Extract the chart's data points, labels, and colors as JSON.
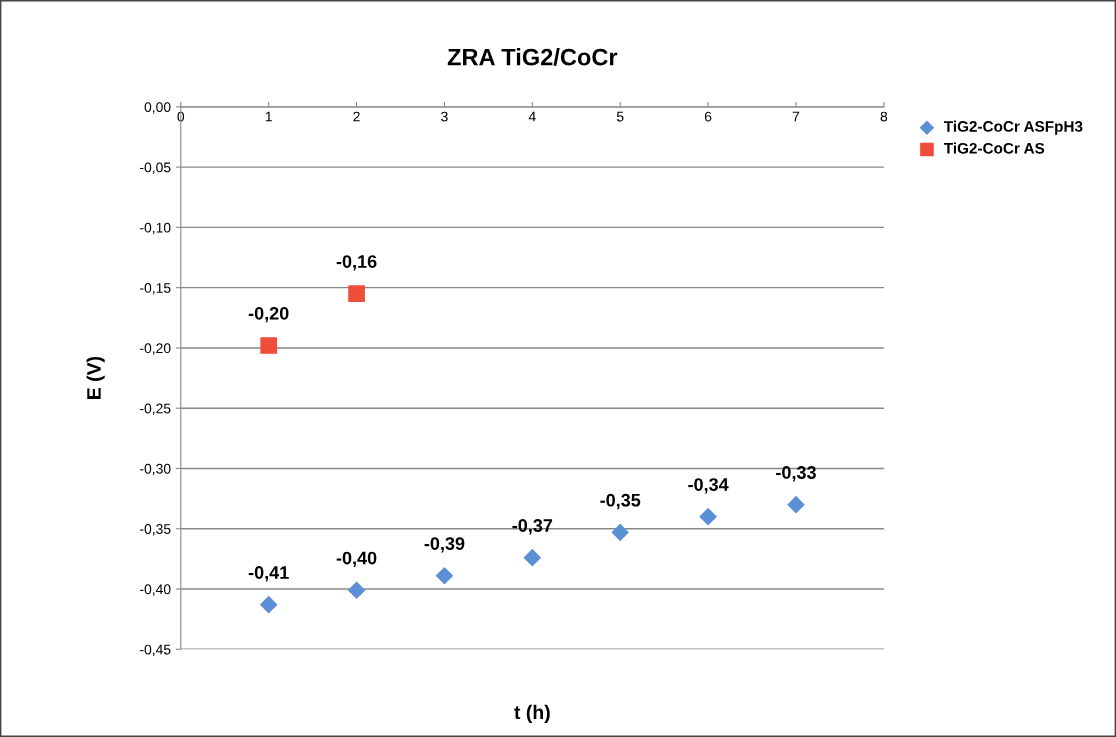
{
  "chart_data": {
    "type": "scatter",
    "title": "ZRA TiG2/CoCr",
    "xlabel": "t (h)",
    "ylabel": "E (V)",
    "xlim": [
      0,
      8
    ],
    "xticks": [
      0,
      1,
      2,
      3,
      4,
      5,
      6,
      7,
      8
    ],
    "ylim": [
      -0.45,
      0
    ],
    "yticks": [
      {
        "value": -0.45,
        "label": "-0,45"
      },
      {
        "value": -0.4,
        "label": "-0,40"
      },
      {
        "value": -0.35,
        "label": "-0,35"
      },
      {
        "value": -0.3,
        "label": "-0,30"
      },
      {
        "value": -0.25,
        "label": "-0,25"
      },
      {
        "value": -0.2,
        "label": "-0,20"
      },
      {
        "value": -0.15,
        "label": "-0,15"
      },
      {
        "value": -0.1,
        "label": "-0,10"
      },
      {
        "value": -0.05,
        "label": "-0,05"
      },
      {
        "value": 0,
        "label": "0,00"
      }
    ],
    "grid": "y",
    "legend": "right",
    "series": [
      {
        "name": "TiG2-CoCr ASFpH3",
        "color": "#5b8fd6",
        "marker": "diamond",
        "x": [
          1,
          2,
          3,
          4,
          5,
          6,
          7
        ],
        "values": [
          -0.413,
          -0.401,
          -0.389,
          -0.374,
          -0.353,
          -0.34,
          -0.33
        ],
        "value_labels": [
          "-0,41",
          "-0,40",
          "-0,39",
          "-0,37",
          "-0,35",
          "-0,34",
          "-0,33"
        ]
      },
      {
        "name": "TiG2-CoCr AS",
        "color": "#f04e3a",
        "marker": "square",
        "x": [
          1,
          2
        ],
        "values": [
          -0.198,
          -0.155
        ],
        "value_labels": [
          "-0,20",
          "-0,16"
        ]
      }
    ]
  }
}
